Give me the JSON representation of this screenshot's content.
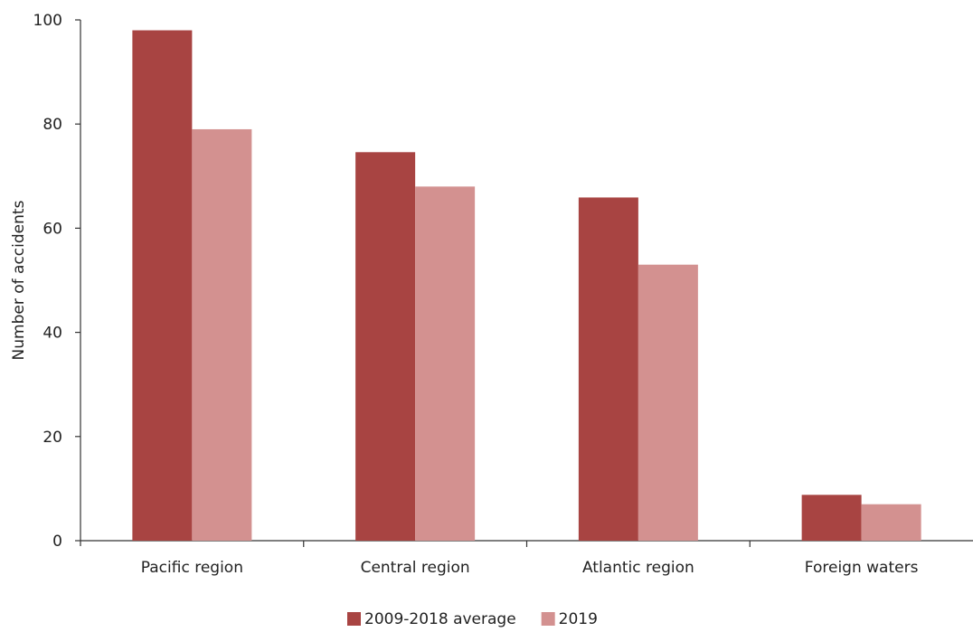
{
  "chart_data": {
    "type": "bar",
    "title": "",
    "xlabel": "",
    "ylabel": "Number of accidents",
    "ylim": [
      0,
      100
    ],
    "yticks": [
      0,
      20,
      40,
      60,
      80,
      100
    ],
    "grid": false,
    "legend_position": "bottom-center",
    "categories": [
      "Pacific region",
      "Central region",
      "Atlantic region",
      "Foreign waters"
    ],
    "series": [
      {
        "name": "2009-2018 average",
        "color": "#a84442",
        "values": [
          98,
          74.6,
          65.9,
          8.8
        ]
      },
      {
        "name": "2019",
        "color": "#d39190",
        "values": [
          79,
          68,
          53,
          7
        ]
      }
    ]
  }
}
